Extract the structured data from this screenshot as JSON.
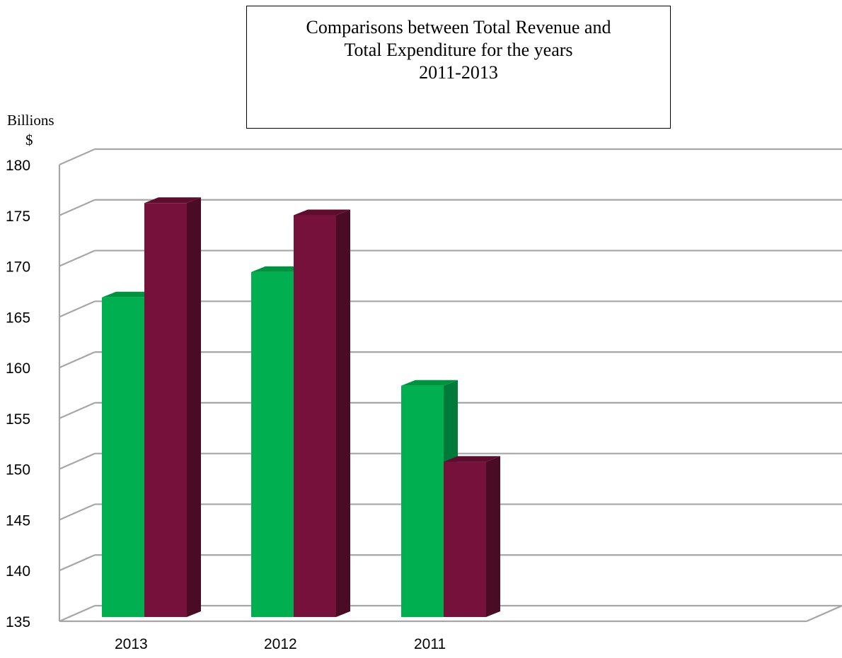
{
  "chart_data": {
    "type": "bar",
    "title_lines": [
      "Comparisons between Total Revenue and",
      "Total Expenditure for the years",
      "2011-2013"
    ],
    "ylabel_lines": [
      "Billions",
      "$"
    ],
    "xlabel": "",
    "categories": [
      "2013",
      "2012",
      "2011"
    ],
    "series": [
      {
        "values": [
          166.5,
          169.0,
          157.8
        ],
        "color": "#00b050",
        "side_color": "#007a3a",
        "top_color": "#00933f"
      },
      {
        "values": [
          175.8,
          174.6,
          150.3
        ],
        "color": "#76113b",
        "side_color": "#4a0c24",
        "top_color": "#5e0d2f"
      }
    ],
    "ylim": [
      135,
      180
    ],
    "yticks": [
      135,
      140,
      145,
      150,
      155,
      160,
      165,
      170,
      175,
      180
    ],
    "grid": true,
    "legend": "none",
    "style": "3d-column"
  }
}
